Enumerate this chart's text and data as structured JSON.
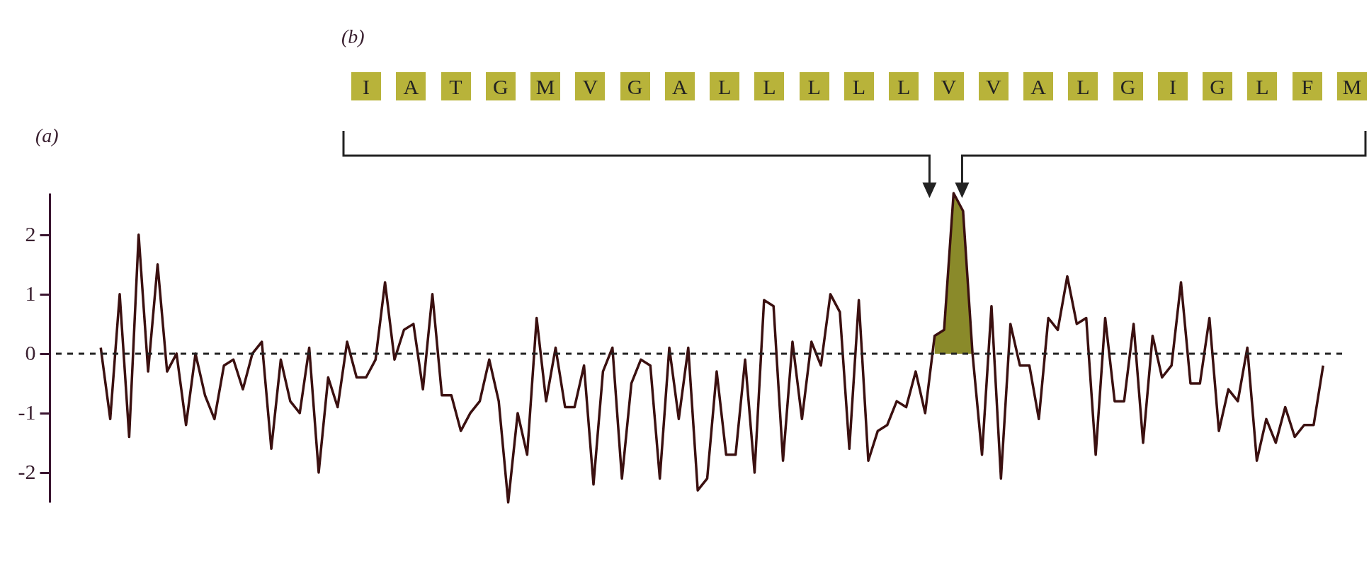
{
  "chart_data": {
    "type": "line",
    "categories": [
      null,
      null,
      null,
      null,
      null,
      null,
      null,
      null,
      null,
      null,
      null,
      null,
      null,
      null,
      null,
      null,
      null,
      null,
      null,
      null,
      null,
      null,
      null,
      null,
      null,
      null,
      null,
      null,
      null,
      null,
      null,
      null,
      null,
      null,
      null,
      null,
      null,
      null,
      null,
      null,
      null,
      null,
      null,
      null,
      null,
      null,
      null,
      null,
      null,
      null,
      null,
      null,
      null,
      null,
      null,
      null,
      null,
      null,
      null,
      null,
      null,
      null,
      null,
      null,
      null,
      null,
      null,
      null,
      null,
      null,
      null,
      null,
      null,
      null,
      null,
      null,
      null,
      null,
      null,
      null,
      null,
      null,
      null,
      null,
      null,
      null,
      null,
      null,
      null,
      null,
      null,
      null,
      null,
      null,
      null,
      null,
      null,
      null,
      null,
      null,
      null,
      null,
      null,
      null,
      null,
      null,
      null,
      null,
      null,
      null,
      null,
      null,
      null,
      null,
      null,
      null,
      null,
      null,
      null,
      null,
      null,
      null,
      null,
      null,
      null,
      null,
      null,
      null,
      null,
      null
    ],
    "series": [
      {
        "type": "area",
        "color": "#8a8a2a",
        "values": [
          null,
          null,
          null,
          null,
          null,
          null,
          null,
          null,
          null,
          null,
          null,
          null,
          null,
          null,
          null,
          null,
          null,
          null,
          null,
          null,
          null,
          null,
          null,
          null,
          null,
          null,
          null,
          null,
          null,
          null,
          null,
          null,
          null,
          null,
          null,
          null,
          null,
          null,
          null,
          null,
          null,
          null,
          null,
          null,
          null,
          null,
          null,
          null,
          null,
          null,
          null,
          null,
          null,
          null,
          null,
          null,
          null,
          null,
          null,
          null,
          null,
          null,
          null,
          null,
          null,
          null,
          null,
          null,
          null,
          null,
          null,
          null,
          null,
          null,
          null,
          null,
          null,
          null,
          null,
          null,
          null,
          null,
          null,
          null,
          null,
          null,
          null,
          null,
          0.3,
          0.4,
          2.7,
          2.4,
          0.0,
          null,
          null,
          null,
          null,
          null,
          null,
          null,
          null,
          null,
          null,
          null,
          null,
          null,
          null,
          null,
          null,
          null,
          null,
          null,
          null,
          null,
          null,
          null,
          null,
          null,
          null,
          null,
          null,
          null,
          null,
          null,
          null,
          null,
          null,
          null,
          null,
          null
        ]
      },
      {
        "type": "line",
        "color": "#3b1010",
        "values": [
          0.1,
          -1.1,
          1.0,
          -1.4,
          2.0,
          -0.3,
          1.5,
          -0.3,
          0.0,
          -1.2,
          0.0,
          -0.7,
          -1.1,
          -0.2,
          -0.1,
          -0.6,
          0.0,
          0.2,
          -1.6,
          -0.1,
          -0.8,
          -1.0,
          0.1,
          -2.0,
          -0.4,
          -0.9,
          0.2,
          -0.4,
          -0.4,
          -0.1,
          1.2,
          -0.1,
          0.4,
          0.5,
          -0.6,
          1.0,
          -0.7,
          -0.7,
          -1.3,
          -1.0,
          -0.8,
          -0.1,
          -0.8,
          -2.5,
          -1.0,
          -1.7,
          0.6,
          -0.8,
          0.1,
          -0.9,
          -0.9,
          -0.2,
          -2.2,
          -0.3,
          0.1,
          -2.1,
          -0.5,
          -0.1,
          -0.2,
          -2.1,
          0.1,
          -1.1,
          0.1,
          -2.3,
          -2.1,
          -0.3,
          -1.7,
          -1.7,
          -0.1,
          -2.0,
          0.9,
          0.8,
          -1.8,
          0.2,
          -1.1,
          0.2,
          -0.2,
          1.0,
          0.7,
          -1.6,
          0.9,
          -1.8,
          -1.3,
          -1.2,
          -0.8,
          -0.9,
          -0.3,
          -1.0,
          0.3,
          0.4,
          2.7,
          2.4,
          0.0,
          -1.7,
          0.8,
          -2.1,
          0.5,
          -0.2,
          -0.2,
          -1.1,
          0.6,
          0.4,
          1.3,
          0.5,
          0.6,
          -1.7,
          0.6,
          -0.8,
          -0.8,
          0.5,
          -1.5,
          0.3,
          -0.4,
          -0.2,
          1.2,
          -0.5,
          -0.5,
          0.6,
          -1.3,
          -0.6,
          -0.8,
          0.1,
          -1.8,
          -1.1,
          -1.5,
          -0.9,
          -1.4,
          -1.2,
          -1.2,
          -0.2
        ]
      }
    ],
    "ylim": [
      -2.5,
      2.7
    ],
    "yticks": [
      -2,
      -1,
      0,
      1,
      2
    ],
    "ref_lines": [
      {
        "axis": "y",
        "value": 0,
        "line_style": "dashed",
        "color": "#222222"
      }
    ],
    "annotations": [
      "(a)",
      "(b)",
      "I",
      "A",
      "T",
      "G",
      "M",
      "V",
      "G",
      "A",
      "L",
      "L",
      "L",
      "L",
      "L",
      "V",
      "V",
      "A",
      "L",
      "G",
      "I",
      "G",
      "L",
      "F",
      "M"
    ]
  }
}
